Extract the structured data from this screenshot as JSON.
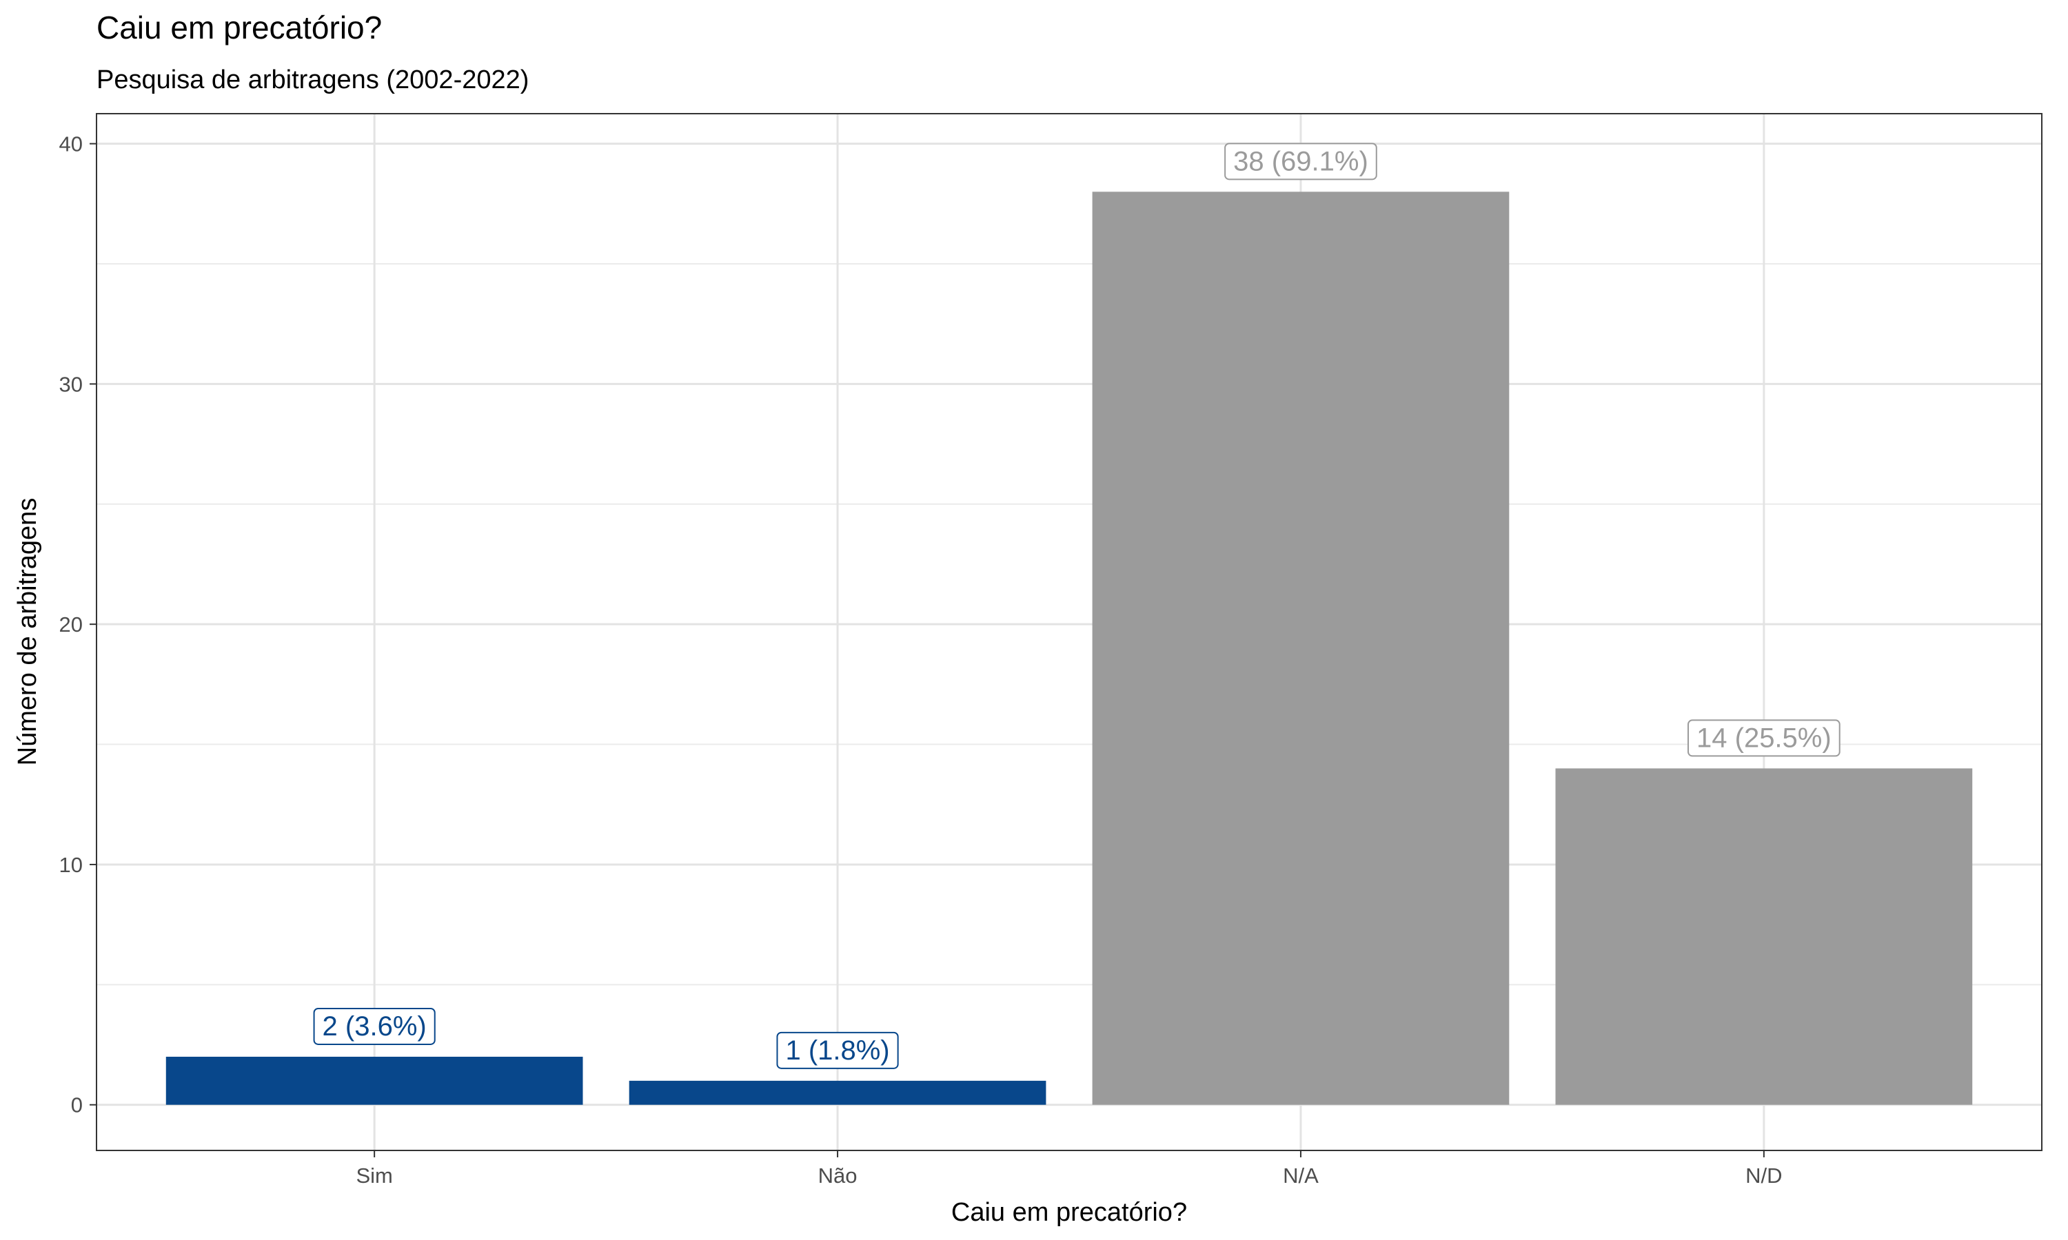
{
  "chart_data": {
    "type": "bar",
    "title": "Caiu em precatório?",
    "subtitle": "Pesquisa de arbitragens (2002-2022)",
    "xlabel": "Caiu em precatório?",
    "ylabel": "Número de arbitragens",
    "categories": [
      "Sim",
      "Não",
      "N/A",
      "N/D"
    ],
    "values": [
      2,
      1,
      38,
      14
    ],
    "labels": [
      "2 (3.6%)",
      "1 (1.8%)",
      "38 (69.1%)",
      "14 (25.5%)"
    ],
    "colors": [
      "#08478b",
      "#08478b",
      "#9b9b9b",
      "#9b9b9b"
    ],
    "ylim": [
      -1.9,
      41.25
    ],
    "yticks": [
      0,
      10,
      20,
      30,
      40
    ],
    "grid": true,
    "legend": "none"
  }
}
